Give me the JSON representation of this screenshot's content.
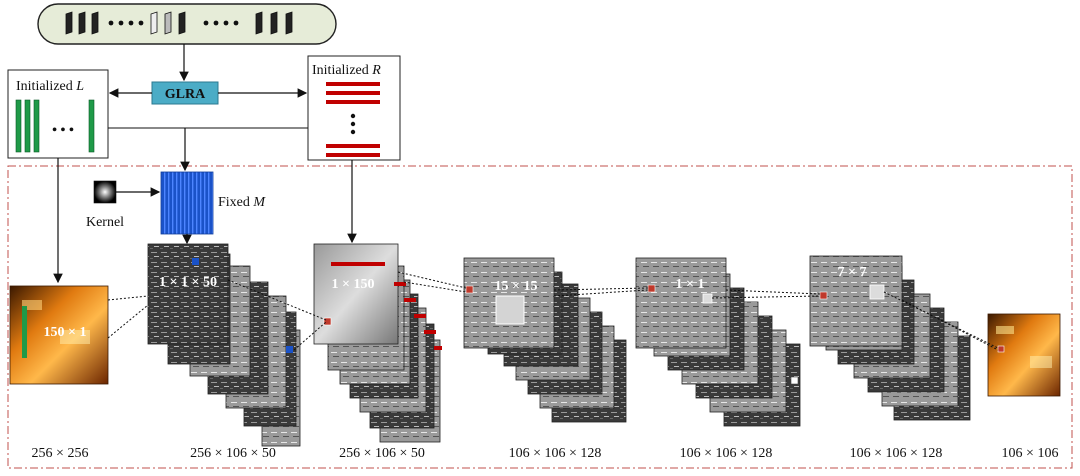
{
  "labels": {
    "glra": "GLRA",
    "init_l_prefix": "Initialized ",
    "init_l_var": "L",
    "init_r_prefix": "Initialized ",
    "init_r_var": "R",
    "fixed_prefix": "Fixed ",
    "fixed_var": "M",
    "kernel": "Kernel",
    "dots": "• • •",
    "kernel_sizes": [
      "150 × 1",
      "1 × 1 × 50",
      "1 × 150",
      "15 × 15",
      "1 × 1",
      "7 × 7"
    ],
    "dims": [
      "256 × 256",
      "256 × 106 × 50",
      "256 × 106 × 50",
      "106 × 106 × 128",
      "106 × 106 × 128",
      "106 × 106 × 128",
      "106 × 106"
    ]
  },
  "colors": {
    "glra_box": "#4bacc6",
    "bar_green": "#1f9a48",
    "bar_red": "#c00000",
    "fixed_m": "#1a52c8",
    "marker_orange": "#c0392b",
    "dash_border": "#c0504d",
    "frames_top_box": "#e6ecd8"
  }
}
